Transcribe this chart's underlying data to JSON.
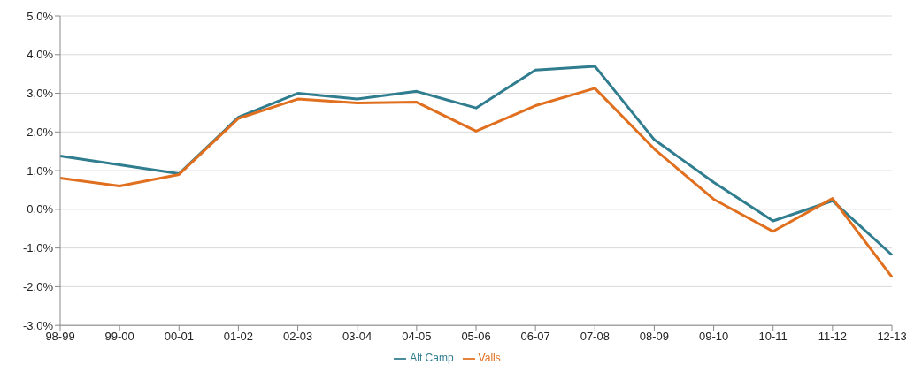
{
  "chart_data": {
    "type": "line",
    "categories": [
      "98-99",
      "99-00",
      "00-01",
      "01-02",
      "02-03",
      "03-04",
      "04-05",
      "05-06",
      "06-07",
      "07-08",
      "08-09",
      "09-10",
      "10-11",
      "11-12",
      "12-13"
    ],
    "series": [
      {
        "name": "Alt Camp",
        "color": "#2f7d8f",
        "values": [
          1.38,
          1.15,
          0.92,
          2.38,
          3.0,
          2.85,
          3.05,
          2.62,
          3.6,
          3.7,
          1.8,
          0.7,
          -0.3,
          0.22,
          -1.18
        ]
      },
      {
        "name": "Valls",
        "color": "#e0701f",
        "values": [
          0.81,
          0.6,
          0.9,
          2.35,
          2.85,
          2.75,
          2.77,
          2.02,
          2.68,
          3.13,
          1.56,
          0.26,
          -0.57,
          0.28,
          -1.75
        ]
      }
    ],
    "ylim": [
      -3,
      5
    ],
    "yticks": [
      {
        "value": -3,
        "label": "-3,0%"
      },
      {
        "value": -2,
        "label": "-2,0%"
      },
      {
        "value": -1,
        "label": "-1,0%"
      },
      {
        "value": 0,
        "label": "0,0%"
      },
      {
        "value": 1,
        "label": "1,0%"
      },
      {
        "value": 2,
        "label": "2,0%"
      },
      {
        "value": 3,
        "label": "3,0%"
      },
      {
        "value": 4,
        "label": "4,0%"
      },
      {
        "value": 5,
        "label": "5,0%"
      }
    ],
    "grid": "y",
    "legend": "bottom",
    "marker": "none",
    "line_style": "solid"
  }
}
